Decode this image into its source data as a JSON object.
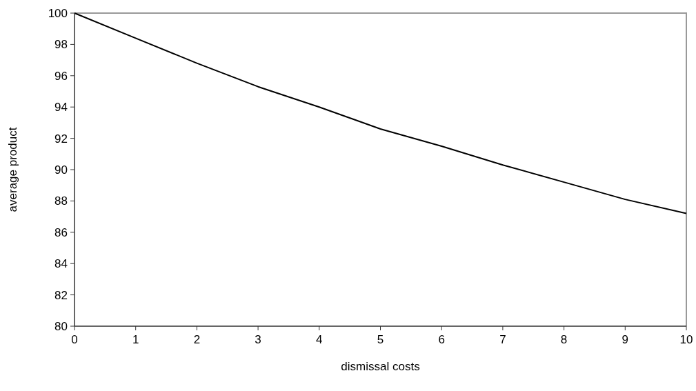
{
  "chart_data": {
    "type": "line",
    "xlabel": "dismissal costs",
    "ylabel": "average product",
    "x": [
      0,
      1,
      2,
      3,
      4,
      5,
      6,
      7,
      8,
      9,
      10
    ],
    "series": [
      {
        "color": "#000000",
        "values": [
          100,
          98.4,
          96.8,
          95.3,
          94.0,
          92.6,
          91.5,
          90.3,
          89.2,
          88.1,
          87.2
        ]
      }
    ],
    "xlim": [
      0,
      10
    ],
    "xticks": [
      0,
      1,
      2,
      3,
      4,
      5,
      6,
      7,
      8,
      9,
      10
    ],
    "ylim": [
      80,
      100
    ],
    "yticks": [
      80,
      82,
      84,
      86,
      88,
      90,
      92,
      94,
      96,
      98,
      100
    ],
    "grid": false,
    "marker": "none",
    "line_style": "solid"
  }
}
